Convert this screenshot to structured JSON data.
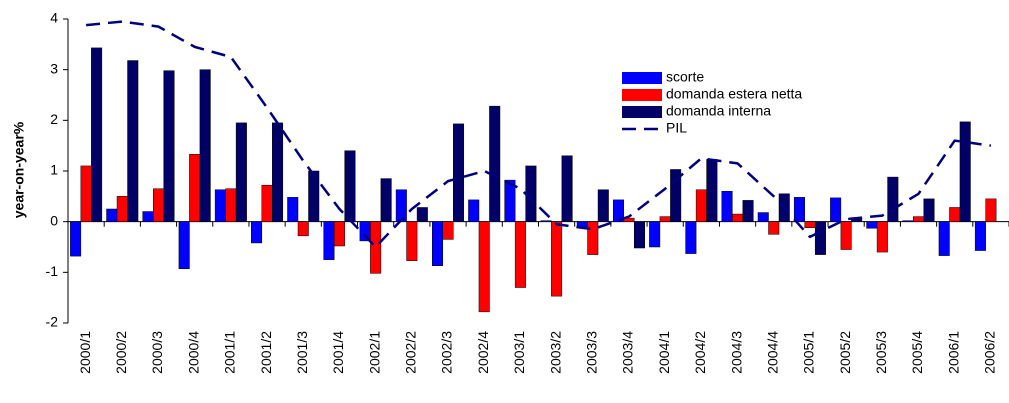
{
  "chart_data": {
    "type": "bar",
    "y_label": "year-on-year%",
    "categories": [
      "2000/1",
      "2000/2",
      "2000/3",
      "2000/4",
      "2001/1",
      "2001/2",
      "2001/3",
      "2001/4",
      "2002/1",
      "2002/2",
      "2002/3",
      "2002/4",
      "2003/1",
      "2003/2",
      "2003/3",
      "2003/4",
      "2004/1",
      "2004/2",
      "2004/3",
      "2004/4",
      "2005/1",
      "2005/2",
      "2005/3",
      "2005/4",
      "2006/1",
      "2006/2"
    ],
    "series": [
      {
        "name": "scorte",
        "color": "#0000ff",
        "type": "bar",
        "values": [
          -0.68,
          0.25,
          0.2,
          -0.93,
          0.63,
          -0.42,
          0.48,
          -0.75,
          -0.38,
          0.63,
          -0.87,
          0.43,
          0.82,
          0.02,
          -0.1,
          0.43,
          -0.5,
          -0.63,
          0.6,
          0.18,
          0.48,
          0.47,
          -0.13,
          0.02,
          -0.67,
          -0.57
        ]
      },
      {
        "name": "domanda estera netta",
        "color": "#ff0000",
        "type": "bar",
        "values": [
          1.1,
          0.5,
          0.65,
          1.33,
          0.65,
          0.72,
          -0.28,
          -0.48,
          -1.02,
          -0.77,
          -0.35,
          -1.78,
          -1.3,
          -1.47,
          -0.65,
          0.07,
          0.1,
          0.63,
          0.15,
          -0.25,
          -0.12,
          -0.55,
          -0.6,
          0.1,
          0.28,
          0.45
        ]
      },
      {
        "name": "domanda interna",
        "color": "#000066",
        "type": "bar",
        "values": [
          3.43,
          3.18,
          2.98,
          3.0,
          1.95,
          1.95,
          1.0,
          1.4,
          0.85,
          0.28,
          1.93,
          2.28,
          1.1,
          1.3,
          0.63,
          -0.52,
          1.03,
          1.23,
          0.42,
          0.55,
          -0.65,
          0.08,
          0.88,
          0.45,
          1.97,
          null
        ]
      },
      {
        "name": "PIL",
        "color": "#000080",
        "type": "line",
        "values": [
          3.88,
          3.95,
          3.85,
          3.45,
          3.25,
          2.25,
          1.2,
          0.25,
          -0.5,
          0.25,
          0.8,
          1.0,
          0.65,
          -0.05,
          -0.15,
          0.1,
          0.65,
          1.25,
          1.15,
          0.5,
          -0.3,
          0.05,
          0.12,
          0.55,
          1.6,
          1.5
        ]
      }
    ],
    "ylim": [
      -2,
      4
    ],
    "yticks": [
      -2,
      -1,
      0,
      1,
      2,
      3,
      4
    ]
  }
}
